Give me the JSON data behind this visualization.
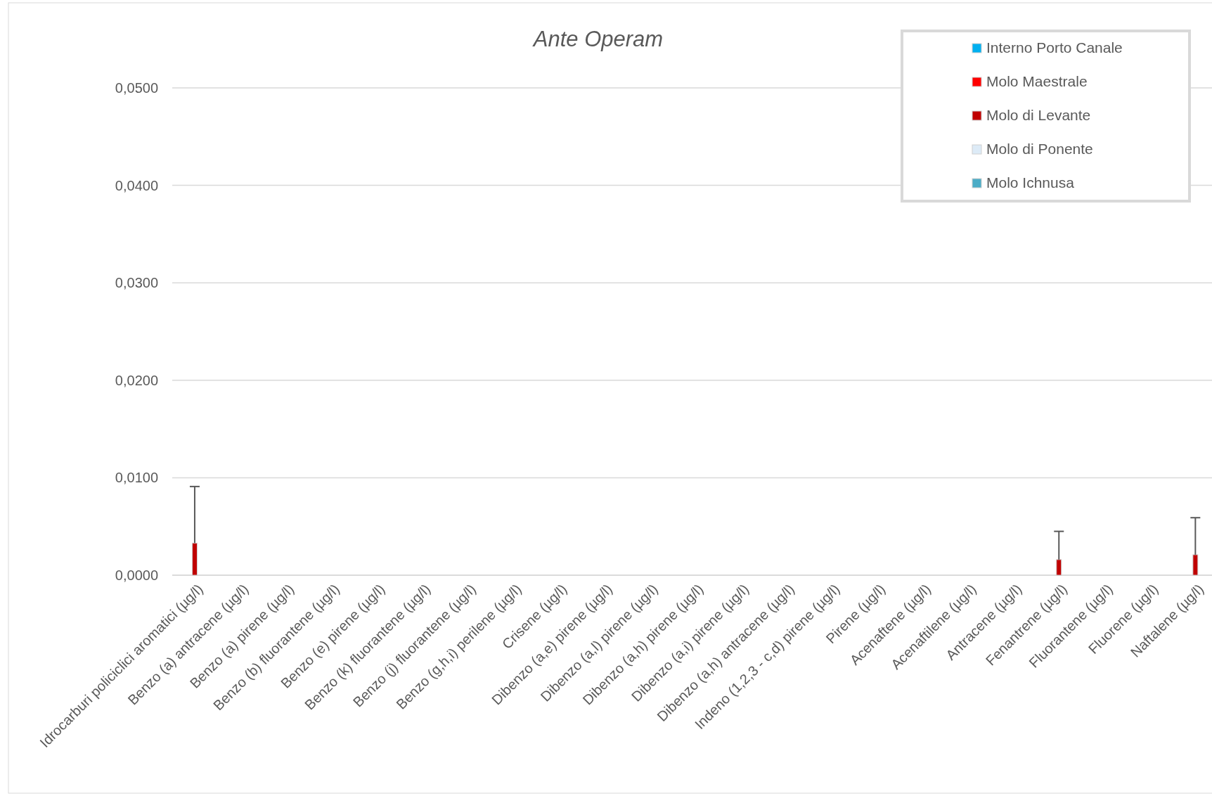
{
  "chart_data": {
    "type": "bar",
    "title": "Ante Operam",
    "categories": [
      "Idrocarburi policiclici aromatici (µg/l)",
      "Benzo (a) antracene (µg/l)",
      "Benzo (a) pirene (µg/l)",
      "Benzo (b) fluorantene (µg/l)",
      "Benzo (e) pirene (µg/l)",
      "Benzo (k) fluorantene (µg/l)",
      "Benzo (j) fluorantene (µg/l)",
      "Benzo (g,h,i) perilene (µg/l)",
      "Crisene (µg/l)",
      "Dibenzo (a,e) pirene (µg/l)",
      "Dibenzo (a,l) pirene (µg/l)",
      "Dibenzo (a,h) pirene (µg/l)",
      "Dibenzo (a,i) pirene (µg/l)",
      "Dibenzo (a,h) antracene (µg/l)",
      "Indeno (1,2,3 - c,d) pirene (µg/l)",
      "Pirene (µg/l)",
      "Acenaftene (µg/l)",
      "Acenaftilene (µg/l)",
      "Antracene (µg/l)",
      "Fenantrene (µg/l)",
      "Fluorantene (µg/l)",
      "Fluorene (µg/l)",
      "Naftalene (µg/l)"
    ],
    "series": [
      {
        "name": "Interno Porto Canale",
        "color": "#00b0f0",
        "values": [
          null,
          null,
          null,
          null,
          null,
          null,
          null,
          null,
          null,
          null,
          null,
          null,
          null,
          null,
          null,
          null,
          null,
          null,
          null,
          null,
          null,
          null,
          null
        ]
      },
      {
        "name": "Molo Maestrale",
        "color": "#ff0000",
        "values": [
          null,
          null,
          null,
          null,
          null,
          null,
          null,
          null,
          null,
          null,
          null,
          null,
          null,
          null,
          null,
          null,
          null,
          null,
          null,
          null,
          null,
          null,
          null
        ]
      },
      {
        "name": "Molo di Levante",
        "color": "#c00000",
        "values": [
          0.0033,
          null,
          null,
          null,
          null,
          null,
          null,
          null,
          null,
          null,
          null,
          null,
          null,
          null,
          null,
          null,
          null,
          null,
          null,
          0.0016,
          null,
          null,
          0.0021
        ],
        "errors": [
          [
            0.0033,
            0.0091
          ],
          null,
          null,
          null,
          null,
          null,
          null,
          null,
          null,
          null,
          null,
          null,
          null,
          null,
          null,
          null,
          null,
          null,
          null,
          [
            0.0016,
            0.0045
          ],
          null,
          null,
          [
            0.0021,
            0.0059
          ]
        ]
      },
      {
        "name": "Molo di Ponente",
        "color": "#ddebf7",
        "values": [
          null,
          null,
          null,
          null,
          null,
          null,
          null,
          null,
          null,
          null,
          null,
          null,
          null,
          null,
          null,
          null,
          null,
          null,
          null,
          null,
          null,
          null,
          null
        ]
      },
      {
        "name": "Molo Ichnusa",
        "color": "#4bacc6",
        "values": [
          null,
          null,
          null,
          null,
          null,
          null,
          null,
          null,
          null,
          null,
          null,
          null,
          null,
          null,
          null,
          null,
          null,
          null,
          null,
          null,
          null,
          null,
          null
        ]
      }
    ],
    "ylim": [
      0,
      0.05
    ],
    "yticks": [
      {
        "value": 0,
        "label": "0,0000"
      },
      {
        "value": 0.01,
        "label": "0,0100"
      },
      {
        "value": 0.02,
        "label": "0,0200"
      },
      {
        "value": 0.03,
        "label": "0,0300"
      },
      {
        "value": 0.04,
        "label": "0,0400"
      },
      {
        "value": 0.05,
        "label": "0,0500"
      }
    ],
    "grid": "y",
    "legend": "top right"
  }
}
